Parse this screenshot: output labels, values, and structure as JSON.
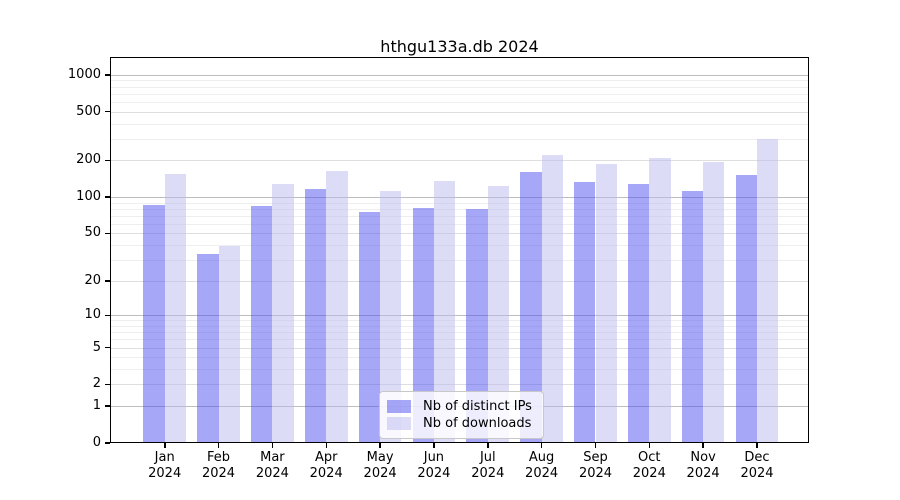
{
  "chart_data": {
    "type": "bar",
    "title": "hthgu133a.db 2024",
    "xlabel": "",
    "ylabel": "",
    "categories": [
      "Jan",
      "Feb",
      "Mar",
      "Apr",
      "May",
      "Jun",
      "Jul",
      "Aug",
      "Sep",
      "Oct",
      "Nov",
      "Dec"
    ],
    "category_year": "2024",
    "series": [
      {
        "name": "Nb of distinct IPs",
        "color": "rgba(80,80,240,0.5)",
        "values": [
          86,
          34,
          84,
          116,
          75,
          81,
          80,
          159,
          133,
          128,
          113,
          152
        ]
      },
      {
        "name": "Nb of downloads",
        "color": "rgba(185,185,240,0.5)",
        "values": [
          155,
          39,
          128,
          164,
          112,
          136,
          124,
          222,
          185,
          210,
          195,
          298
        ]
      }
    ],
    "y_ticks": [
      1000,
      500,
      200,
      100,
      50,
      20,
      10,
      5,
      2,
      1,
      0
    ],
    "y_scale": "log10(value+1)",
    "ylim": [
      0,
      1400
    ],
    "grid": true,
    "legend_position": "bottom-center-inside",
    "colors": {
      "background": "#ffffff",
      "axis": "#000000",
      "grid_decade": "#bdbdbd",
      "grid_labeled": "#dedede",
      "grid_minor": "#eeeeee",
      "legend_border": "#c8c8c8"
    }
  }
}
